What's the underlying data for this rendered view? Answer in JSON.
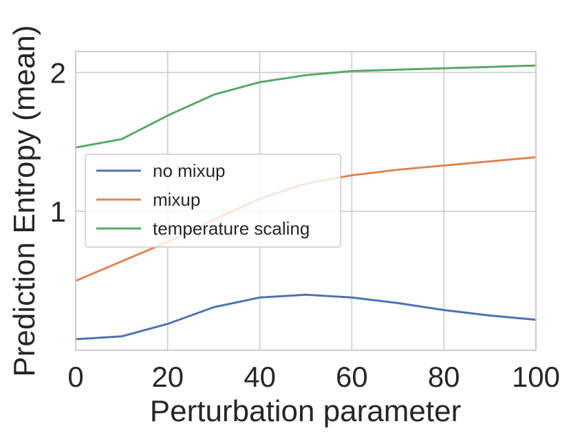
{
  "chart_data": {
    "type": "line",
    "xlabel": "Perturbation parameter",
    "ylabel": "Prediction Entropy (mean)",
    "xlim": [
      0,
      100
    ],
    "ylim": [
      0.0,
      2.15
    ],
    "xticks": [
      0,
      20,
      40,
      60,
      80,
      100
    ],
    "yticks": [
      1,
      2
    ],
    "grid": true,
    "legend_position": "center-left",
    "series": [
      {
        "name": "no mixup",
        "color": "#4c72b0",
        "x": [
          0,
          10,
          20,
          30,
          40,
          50,
          60,
          70,
          80,
          90,
          100
        ],
        "y": [
          0.08,
          0.1,
          0.19,
          0.31,
          0.38,
          0.4,
          0.38,
          0.34,
          0.29,
          0.25,
          0.22
        ]
      },
      {
        "name": "mixup",
        "color": "#dd8452",
        "x": [
          0,
          10,
          20,
          30,
          40,
          50,
          60,
          70,
          80,
          90,
          100
        ],
        "y": [
          0.5,
          0.64,
          0.78,
          0.94,
          1.09,
          1.2,
          1.26,
          1.3,
          1.33,
          1.36,
          1.39
        ]
      },
      {
        "name": "temperature scaling",
        "color": "#55a868",
        "x": [
          0,
          10,
          20,
          30,
          40,
          50,
          60,
          70,
          80,
          90,
          100
        ],
        "y": [
          1.46,
          1.52,
          1.69,
          1.84,
          1.93,
          1.98,
          2.01,
          2.02,
          2.03,
          2.04,
          2.05
        ]
      }
    ]
  }
}
